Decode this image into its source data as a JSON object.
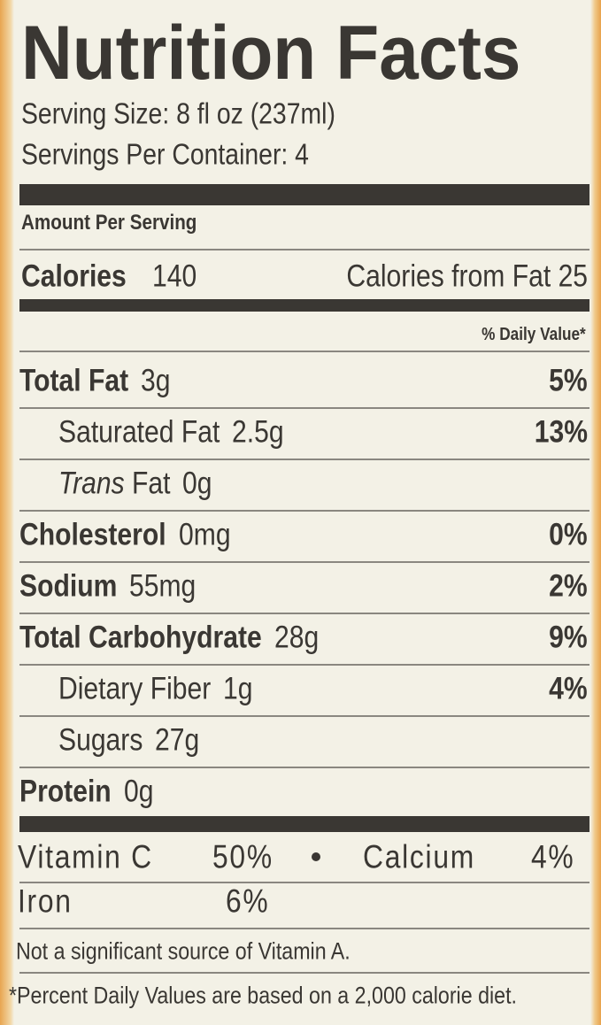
{
  "title": "Nutrition Facts",
  "serving_size": "Serving Size: 8 fl oz (237ml)",
  "servings_per_container": "Servings Per Container: 4",
  "amount_per_serving": "Amount Per Serving",
  "calories": {
    "label": "Calories",
    "value": "140",
    "from_fat": "Calories from Fat 25"
  },
  "daily_value_header": "% Daily Value*",
  "nutrients": [
    {
      "name": "Total Fat",
      "amount": "3g",
      "dv": "5%"
    },
    {
      "name": "Saturated Fat",
      "amount": "2.5g",
      "dv": "13%"
    },
    {
      "prefix": "Trans",
      "name": "Fat",
      "amount": "0g"
    },
    {
      "name": "Cholesterol",
      "amount": "0mg",
      "dv": "0%"
    },
    {
      "name": "Sodium",
      "amount": "55mg",
      "dv": "2%"
    },
    {
      "name": "Total Carbohydrate",
      "amount": "28g",
      "dv": "9%"
    },
    {
      "name": "Dietary Fiber",
      "amount": "1g",
      "dv": "4%"
    },
    {
      "name": "Sugars",
      "amount": "27g"
    },
    {
      "name": "Protein",
      "amount": "0g"
    }
  ],
  "vitamins": [
    {
      "name": "Vitamin C",
      "value": "50%"
    },
    {
      "name": "Calcium",
      "value": "4%"
    },
    {
      "name": "Iron",
      "value": "6%"
    }
  ],
  "note": "Not a significant source of Vitamin A.",
  "footnote": "*Percent Daily Values are based on a 2,000 calorie diet."
}
